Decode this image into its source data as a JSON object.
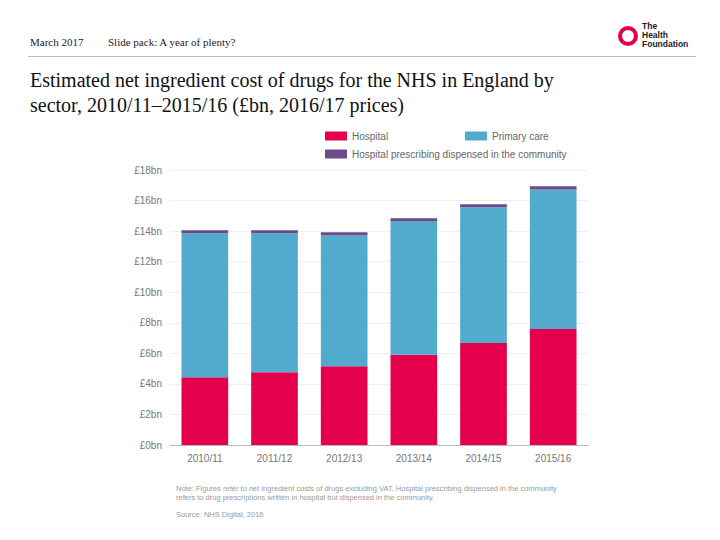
{
  "header": {
    "date": "March 2017",
    "slide": "Slide pack: A year of plenty?",
    "logo": [
      "The",
      "Health",
      "Foundation"
    ]
  },
  "chart_data": {
    "type": "bar",
    "title": "Estimated net ingredient cost of drugs for the NHS in England by sector, 2010/11–2015/16 (£bn, 2016/17 prices)",
    "categories": [
      "2010/11",
      "2011/12",
      "2012/13",
      "2013/14",
      "2014/15",
      "2015/16"
    ],
    "series": [
      {
        "name": "Hospital",
        "color": "#e5004b",
        "values": [
          4.44,
          4.77,
          5.16,
          5.9,
          6.67,
          7.6
        ]
      },
      {
        "name": "Primary care",
        "color": "#52abcd",
        "values": [
          9.42,
          9.09,
          8.57,
          8.74,
          8.89,
          9.13
        ]
      },
      {
        "name": "Hospital prescribing dispensed in the community",
        "color": "#6b4a8c",
        "values": [
          0.2,
          0.2,
          0.2,
          0.2,
          0.2,
          0.2
        ]
      }
    ],
    "stacked": true,
    "legend": "top",
    "grid": true,
    "ylim": [
      0,
      18
    ],
    "yticks": [
      {
        "value": 0,
        "label": "£0bn"
      },
      {
        "value": 2,
        "label": "£2bn"
      },
      {
        "value": 4,
        "label": "£4bn"
      },
      {
        "value": 6,
        "label": "£6bn"
      },
      {
        "value": 8,
        "label": "£8bn"
      },
      {
        "value": 10,
        "label": "£10bn"
      },
      {
        "value": 12,
        "label": "£12bn"
      },
      {
        "value": 14,
        "label": "£14bn"
      },
      {
        "value": 16,
        "label": "£16bn"
      },
      {
        "value": 18,
        "label": "£18bn"
      }
    ],
    "note": "Note: Figures refer to net ingredient costs of drugs excluding VAT. Hospital prescribing dispensed in the community refers to drug prescriptions written in hospital but dispensed in the community.",
    "source": "Source: NHS Digital, 2016"
  }
}
